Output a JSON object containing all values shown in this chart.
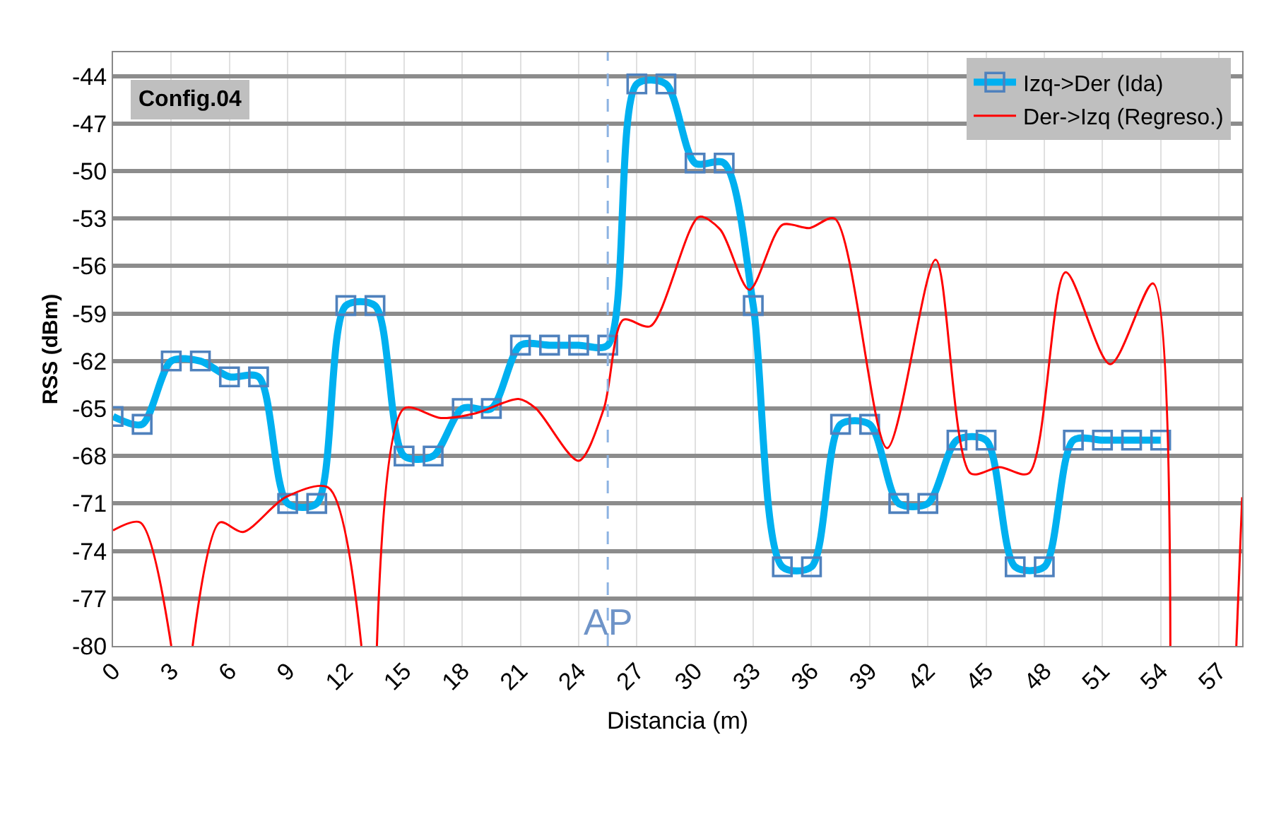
{
  "chart_data": {
    "type": "line",
    "xlabel": "Distancia (m)",
    "ylabel": "RSS (dBm)",
    "xlim": [
      0,
      58.2
    ],
    "xticks": [
      0,
      3,
      6,
      9,
      12,
      15,
      18,
      21,
      24,
      27,
      30,
      33,
      36,
      39,
      42,
      45,
      48,
      51,
      54,
      57
    ],
    "ylim": [
      -80,
      -42.5
    ],
    "yticks": [
      -44,
      -47,
      -50,
      -53,
      -56,
      -59,
      -62,
      -65,
      -68,
      -71,
      -74,
      -77,
      -80
    ],
    "grid": true,
    "legend": "top right",
    "line_style": "solid",
    "annotations": [
      "Config.04"
    ],
    "ref_lines": [
      {
        "axis": "x",
        "value": 25.5,
        "label": "AP",
        "color": "#8db3e2",
        "line_style": "dashed"
      }
    ],
    "series": [
      {
        "name": "Izq->Der (Ida)",
        "color": "#00b0f0",
        "marker": "square",
        "x": [
          0,
          1.5,
          3,
          4.5,
          6,
          7.5,
          9,
          10.5,
          12,
          13.5,
          15,
          16.5,
          18,
          19.5,
          21,
          22.5,
          24,
          25.5,
          27,
          28.5,
          30,
          31.5,
          33,
          34.5,
          36,
          37.5,
          39,
          40.5,
          42,
          43.5,
          45,
          46.5,
          48,
          49.5,
          51,
          52.5,
          54
        ],
        "values": [
          -65.5,
          -66,
          -62,
          -62,
          -63,
          -63,
          -71,
          -71,
          -58.5,
          -58.5,
          -68,
          -68,
          -65,
          -65,
          -61,
          -61,
          -61,
          -61,
          -44.5,
          -44.5,
          -49.5,
          -49.5,
          -58.5,
          -75,
          -75,
          -66,
          -66,
          -71,
          -71,
          -67,
          -67,
          -75,
          -75,
          -67,
          -67,
          -67,
          -67
        ]
      },
      {
        "name": "Der->Izq (Regreso.)",
        "color": "#ff0000",
        "marker": "none",
        "x": [
          0,
          1.4,
          3.0,
          3.5,
          4.1,
          5.5,
          6.7,
          8.9,
          11.1,
          12.8,
          13.2,
          13.6,
          15.0,
          16.9,
          18.7,
          20.9,
          21.8,
          24.0,
          25.3,
          26.3,
          27.7,
          30.2,
          31.3,
          32.8,
          34.5,
          35.9,
          37.2,
          39.9,
          42.4,
          44.2,
          45.7,
          47.2,
          49.1,
          51.4,
          53.6,
          54.5,
          56.0,
          57.9,
          58.2
        ],
        "values": [
          -72.7,
          -72.2,
          -80,
          null,
          -80,
          -72.2,
          -72.8,
          -70.6,
          -70,
          -80,
          null,
          -80,
          -65,
          -65.6,
          -65.3,
          -64.4,
          -65,
          -68.3,
          -65,
          -59.4,
          -59.8,
          -52.9,
          -53.7,
          -57.5,
          -53.4,
          -53.6,
          -53,
          -67.5,
          -55.6,
          -69.1,
          -68.7,
          -69.1,
          -56.4,
          -62.2,
          -57.1,
          -80,
          null,
          -80,
          -70.6
        ]
      }
    ]
  }
}
